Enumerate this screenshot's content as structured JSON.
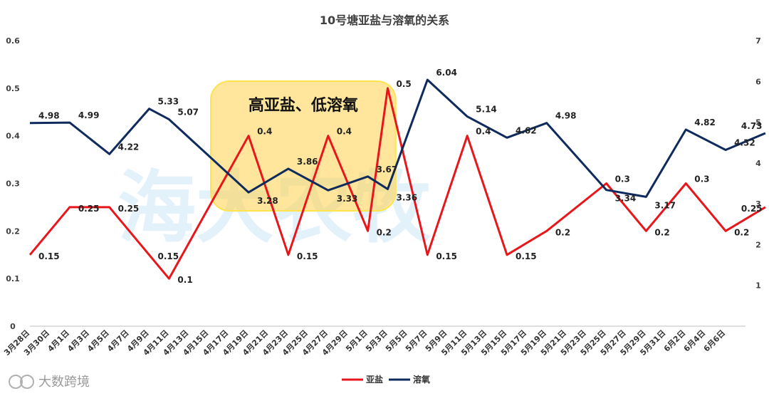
{
  "watermark": {
    "main": "海大农牧",
    "corner": "大数跨境",
    "corner_logo": "logo-icon"
  },
  "chart_data": {
    "type": "line",
    "title": "10号塘亚盐与溶氧的关系",
    "xlabel": "",
    "ylabel": "",
    "ylim": [
      0,
      0.6
    ],
    "y2lim": [
      0,
      7
    ],
    "y_ticks": [
      "0",
      "0.1",
      "0.2",
      "0.3",
      "0.4",
      "0.5",
      "0.6"
    ],
    "y2_ticks": [
      "1",
      "2",
      "3",
      "4",
      "5",
      "6",
      "7"
    ],
    "grid": false,
    "legend_position": "bottom",
    "categories": [
      "3月28日",
      "3月30日",
      "4月1日",
      "4月3日",
      "4月5日",
      "4月7日",
      "4月9日",
      "4月11日",
      "4月13日",
      "4月15日",
      "4月17日",
      "4月19日",
      "4月21日",
      "4月23日",
      "4月25日",
      "4月27日",
      "4月29日",
      "5月1日",
      "5月3日",
      "5月5日",
      "5月7日",
      "5月9日",
      "5月11日",
      "5月13日",
      "5月15日",
      "5月17日",
      "5月19日",
      "5月21日",
      "5月23日",
      "5月25日",
      "5月27日",
      "5月29日",
      "5月31日",
      "6月2日",
      "6月4日",
      "6月6日"
    ],
    "series": [
      {
        "name": "亚盐",
        "color": "#e8161b",
        "axis": "left",
        "points": [
          [
            0,
            0.15
          ],
          [
            2,
            0.25
          ],
          [
            4,
            0.25
          ],
          [
            6,
            0.15
          ],
          [
            7,
            0.1
          ],
          [
            11,
            0.4
          ],
          [
            13,
            0.15
          ],
          [
            15,
            0.4
          ],
          [
            17,
            0.2
          ],
          [
            18,
            0.5
          ],
          [
            20,
            0.15
          ],
          [
            22,
            0.4
          ],
          [
            24,
            0.15
          ],
          [
            26,
            0.2
          ],
          [
            29,
            0.3
          ],
          [
            31,
            0.2
          ],
          [
            33,
            0.3
          ],
          [
            35,
            0.2
          ],
          [
            37,
            0.25
          ]
        ],
        "labels": [
          "0.15",
          "0.25",
          "0.25",
          "0.15",
          "0.1",
          "0.4",
          "0.15",
          "0.4",
          "0.2",
          "0.5",
          "0.15",
          "0.4",
          "0.15",
          "0.2",
          "0.3",
          "0.2",
          "0.3",
          "0.2",
          "0.25"
        ]
      },
      {
        "name": "溶氧",
        "color": "#0f2a5c",
        "axis": "right",
        "points": [
          [
            0,
            4.98
          ],
          [
            2,
            4.99
          ],
          [
            4,
            4.22
          ],
          [
            6,
            5.33
          ],
          [
            7,
            5.07
          ],
          [
            11,
            3.28
          ],
          [
            13,
            3.86
          ],
          [
            15,
            3.33
          ],
          [
            17,
            3.67
          ],
          [
            18,
            3.36
          ],
          [
            20,
            6.04
          ],
          [
            22,
            5.14
          ],
          [
            24,
            4.62
          ],
          [
            26,
            4.98
          ],
          [
            29,
            3.34
          ],
          [
            31,
            3.17
          ],
          [
            33,
            4.82
          ],
          [
            35,
            4.32
          ],
          [
            37,
            4.73
          ]
        ],
        "labels": [
          "4.98",
          "4.99",
          "4.22",
          "5.33",
          "5.07",
          "3.28",
          "3.86",
          "3.33",
          "3.67",
          "3.36",
          "6.04",
          "5.14",
          "4.62",
          "4.98",
          "3.34",
          "3.17",
          "4.82",
          "4.32",
          "4.73"
        ]
      }
    ],
    "annotations": [
      {
        "text": "高亚盐、低溶氧"
      }
    ]
  }
}
